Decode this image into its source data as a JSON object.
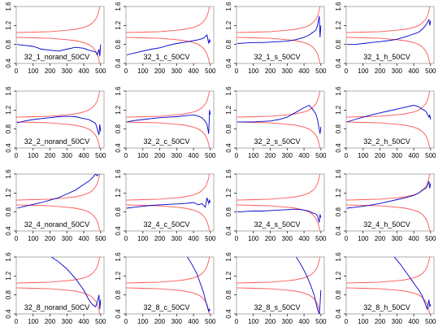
{
  "chart_data": {
    "type": "line",
    "layout": "4x4 small multiples",
    "xlim": [
      0,
      520
    ],
    "ylim": [
      0.4,
      1.6
    ],
    "x_ticks": [
      0,
      100,
      200,
      300,
      400,
      500
    ],
    "y_ticks": [
      0.4,
      0.8,
      1.2,
      1.6
    ],
    "colors": {
      "series": "#0000cc",
      "bounds": "#ff5555",
      "axis": "#000000"
    },
    "bounds": {
      "description_x": [
        0,
        100,
        200,
        300,
        350,
        400,
        430,
        450,
        470,
        480,
        490,
        495
      ],
      "upper": [
        1.05,
        1.06,
        1.07,
        1.1,
        1.12,
        1.16,
        1.2,
        1.25,
        1.33,
        1.4,
        1.52,
        1.62
      ],
      "lower": [
        0.95,
        0.94,
        0.93,
        0.9,
        0.88,
        0.84,
        0.8,
        0.75,
        0.67,
        0.6,
        0.48,
        0.38
      ]
    },
    "panels": [
      {
        "label": "32_1_norand_50CV",
        "x": [
          5,
          50,
          100,
          150,
          200,
          250,
          300,
          350,
          400,
          430,
          450,
          470,
          480,
          490,
          495,
          500
        ],
        "y": [
          0.8,
          0.78,
          0.76,
          0.7,
          0.68,
          0.66,
          0.7,
          0.74,
          0.72,
          0.68,
          0.66,
          0.64,
          0.58,
          0.7,
          0.55,
          0.8
        ]
      },
      {
        "label": "32_1_c_50CV",
        "x": [
          5,
          50,
          100,
          150,
          200,
          250,
          300,
          350,
          400,
          430,
          450,
          470,
          480,
          490,
          495,
          500
        ],
        "y": [
          0.58,
          0.62,
          0.66,
          0.7,
          0.73,
          0.78,
          0.82,
          0.85,
          0.88,
          0.9,
          0.92,
          0.96,
          1.0,
          0.82,
          0.9,
          0.85
        ]
      },
      {
        "label": "32_1_s_50CV",
        "x": [
          5,
          50,
          100,
          150,
          200,
          250,
          300,
          350,
          400,
          430,
          450,
          470,
          480,
          490,
          495,
          500
        ],
        "y": [
          0.82,
          0.83,
          0.84,
          0.84,
          0.85,
          0.86,
          0.87,
          0.9,
          0.95,
          1.0,
          1.05,
          1.1,
          1.2,
          1.4,
          0.95,
          1.2
        ]
      },
      {
        "label": "32_1_h_50CV",
        "x": [
          5,
          50,
          100,
          150,
          200,
          250,
          300,
          350,
          400,
          430,
          450,
          470,
          480,
          490,
          495,
          500
        ],
        "y": [
          0.8,
          0.8,
          0.82,
          0.84,
          0.86,
          0.88,
          0.91,
          0.96,
          1.02,
          1.06,
          1.12,
          1.2,
          1.26,
          1.32,
          1.2,
          1.3
        ]
      },
      {
        "label": "32_2_norand_50CV",
        "x": [
          5,
          50,
          100,
          150,
          200,
          250,
          300,
          350,
          400,
          430,
          450,
          470,
          480,
          490,
          495,
          500
        ],
        "y": [
          0.93,
          0.97,
          1.0,
          1.02,
          1.04,
          1.06,
          1.07,
          1.06,
          1.02,
          1.0,
          0.96,
          0.92,
          0.8,
          0.68,
          0.9,
          0.75
        ]
      },
      {
        "label": "32_2_c_50CV",
        "x": [
          5,
          50,
          100,
          150,
          200,
          250,
          300,
          350,
          400,
          430,
          450,
          470,
          480,
          490,
          495,
          500
        ],
        "y": [
          0.95,
          0.98,
          1.0,
          1.02,
          1.04,
          1.05,
          1.06,
          1.08,
          1.1,
          1.07,
          1.04,
          0.96,
          0.9,
          0.7,
          1.2,
          1.1
        ]
      },
      {
        "label": "32_2_s_50CV",
        "x": [
          5,
          50,
          100,
          150,
          200,
          250,
          300,
          350,
          400,
          430,
          450,
          470,
          480,
          490,
          495,
          500
        ],
        "y": [
          0.95,
          0.95,
          0.95,
          0.96,
          0.97,
          1.0,
          1.05,
          1.15,
          1.25,
          1.3,
          1.22,
          1.12,
          1.0,
          0.8,
          0.7,
          0.85
        ]
      },
      {
        "label": "32_2_h_50CV",
        "x": [
          5,
          50,
          100,
          150,
          200,
          250,
          300,
          350,
          400,
          430,
          450,
          470,
          480,
          490,
          495,
          500
        ],
        "y": [
          0.95,
          1.0,
          1.05,
          1.1,
          1.14,
          1.18,
          1.22,
          1.26,
          1.3,
          1.27,
          1.22,
          1.18,
          1.12,
          1.05,
          1.1,
          1.0
        ]
      },
      {
        "label": "32_4_norand_50CV",
        "x": [
          5,
          50,
          100,
          150,
          200,
          250,
          300,
          350,
          400,
          430,
          450,
          470,
          480,
          490,
          495,
          500
        ],
        "y": [
          0.88,
          0.92,
          0.96,
          1.0,
          1.05,
          1.1,
          1.18,
          1.26,
          1.38,
          1.45,
          1.52,
          1.6,
          1.56,
          1.62,
          1.6,
          1.62
        ]
      },
      {
        "label": "32_4_c_50CV",
        "x": [
          5,
          50,
          100,
          150,
          200,
          250,
          300,
          350,
          400,
          430,
          450,
          470,
          480,
          490,
          495,
          500
        ],
        "y": [
          0.88,
          0.9,
          0.92,
          0.94,
          0.95,
          0.96,
          0.97,
          0.98,
          1.0,
          0.95,
          0.98,
          0.9,
          1.1,
          0.98,
          1.05,
          1.0
        ]
      },
      {
        "label": "32_4_s_50CV",
        "x": [
          5,
          50,
          100,
          150,
          200,
          250,
          300,
          350,
          400,
          430,
          450,
          470,
          480,
          490,
          495,
          500
        ],
        "y": [
          0.8,
          0.81,
          0.82,
          0.82,
          0.83,
          0.84,
          0.85,
          0.86,
          0.84,
          0.82,
          0.78,
          0.76,
          0.72,
          0.58,
          0.75,
          0.68
        ]
      },
      {
        "label": "32_4_h_50CV",
        "x": [
          5,
          50,
          100,
          150,
          200,
          250,
          300,
          350,
          400,
          430,
          450,
          470,
          480,
          490,
          495,
          500
        ],
        "y": [
          0.88,
          0.9,
          0.92,
          0.95,
          0.98,
          1.02,
          1.06,
          1.1,
          1.15,
          1.2,
          1.26,
          1.3,
          1.34,
          1.45,
          1.3,
          1.4
        ]
      },
      {
        "label": "32_8_norand_50CV",
        "x": [
          200,
          250,
          300,
          350,
          400,
          430,
          450,
          470,
          480,
          490,
          495,
          500
        ],
        "y": [
          1.62,
          1.5,
          1.35,
          1.15,
          0.9,
          0.7,
          0.6,
          0.55,
          0.65,
          0.8,
          0.5,
          0.7
        ]
      },
      {
        "label": "32_8_c_50CV",
        "x": [
          360,
          390,
          420,
          440,
          460,
          470,
          480,
          490,
          495,
          500
        ],
        "y": [
          1.62,
          1.45,
          1.25,
          1.05,
          0.85,
          0.7,
          0.58,
          0.45,
          0.5,
          0.48
        ]
      },
      {
        "label": "32_8_s_50CV",
        "x": [
          350,
          380,
          410,
          440,
          460,
          470,
          480,
          490,
          495,
          500
        ],
        "y": [
          1.62,
          1.45,
          1.25,
          1.0,
          0.8,
          0.65,
          0.5,
          0.4,
          0.6,
          0.9
        ]
      },
      {
        "label": "32_8_h_50CV",
        "x": [
          280,
          320,
          360,
          400,
          430,
          450,
          470,
          480,
          490,
          495,
          500
        ],
        "y": [
          1.62,
          1.45,
          1.25,
          1.05,
          0.9,
          0.78,
          0.6,
          0.5,
          0.7,
          0.55,
          0.6
        ]
      }
    ]
  }
}
